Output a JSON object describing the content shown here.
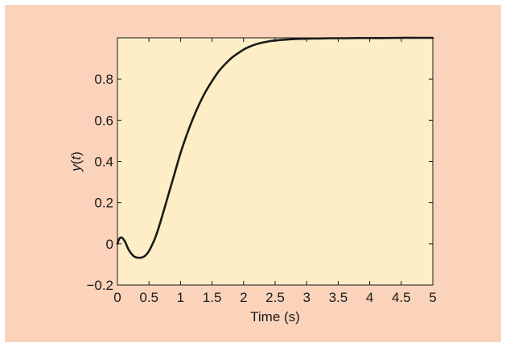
{
  "colors": {
    "figure_background": "#fbd3bb",
    "plot_background": "#fdeec7",
    "line": "#1a1a1a",
    "axis": "#1a1a1a"
  },
  "chart_data": {
    "type": "line",
    "title": "",
    "xlabel": "Time (s)",
    "ylabel_parts": {
      "var": "y",
      "open": "(",
      "arg": "t",
      "close": ")"
    },
    "xlim": [
      0,
      5
    ],
    "ylim": [
      -0.2,
      1.0
    ],
    "xticks": [
      0,
      0.5,
      1,
      1.5,
      2,
      2.5,
      3,
      3.5,
      4,
      4.5,
      5
    ],
    "xtick_labels": [
      "0",
      "0.5",
      "1",
      "1.5",
      "2",
      "2.5",
      "3",
      "3.5",
      "4",
      "4.5",
      "5"
    ],
    "yticks": [
      -0.2,
      0,
      0.2,
      0.4,
      0.6,
      0.8
    ],
    "ytick_labels": [
      "−0.2",
      "0",
      "0.2",
      "0.4",
      "0.6",
      "0.8"
    ],
    "grid": false,
    "series": [
      {
        "x": [
          0,
          0.03,
          0.07,
          0.12,
          0.18,
          0.25,
          0.3,
          0.35,
          0.4,
          0.45,
          0.5,
          0.55,
          0.6,
          0.65,
          0.7,
          0.8,
          0.9,
          1.0,
          1.1,
          1.2,
          1.3,
          1.4,
          1.5,
          1.6,
          1.7,
          1.8,
          1.9,
          2.0,
          2.1,
          2.2,
          2.3,
          2.4,
          2.5,
          2.6,
          2.7,
          2.8,
          2.9,
          3.0,
          3.2,
          3.4,
          3.6,
          3.8,
          4.0,
          4.25,
          4.5,
          4.75,
          5.0
        ],
        "y": [
          0,
          0.025,
          0.03,
          0.01,
          -0.03,
          -0.058,
          -0.066,
          -0.068,
          -0.065,
          -0.055,
          -0.035,
          -0.005,
          0.03,
          0.075,
          0.125,
          0.23,
          0.335,
          0.44,
          0.53,
          0.61,
          0.68,
          0.74,
          0.79,
          0.835,
          0.87,
          0.9,
          0.923,
          0.943,
          0.958,
          0.969,
          0.977,
          0.983,
          0.987,
          0.99,
          0.992,
          0.994,
          0.995,
          0.996,
          0.997,
          0.998,
          0.998,
          0.999,
          0.999,
          0.999,
          1.0,
          1.0,
          1.0
        ]
      }
    ]
  }
}
